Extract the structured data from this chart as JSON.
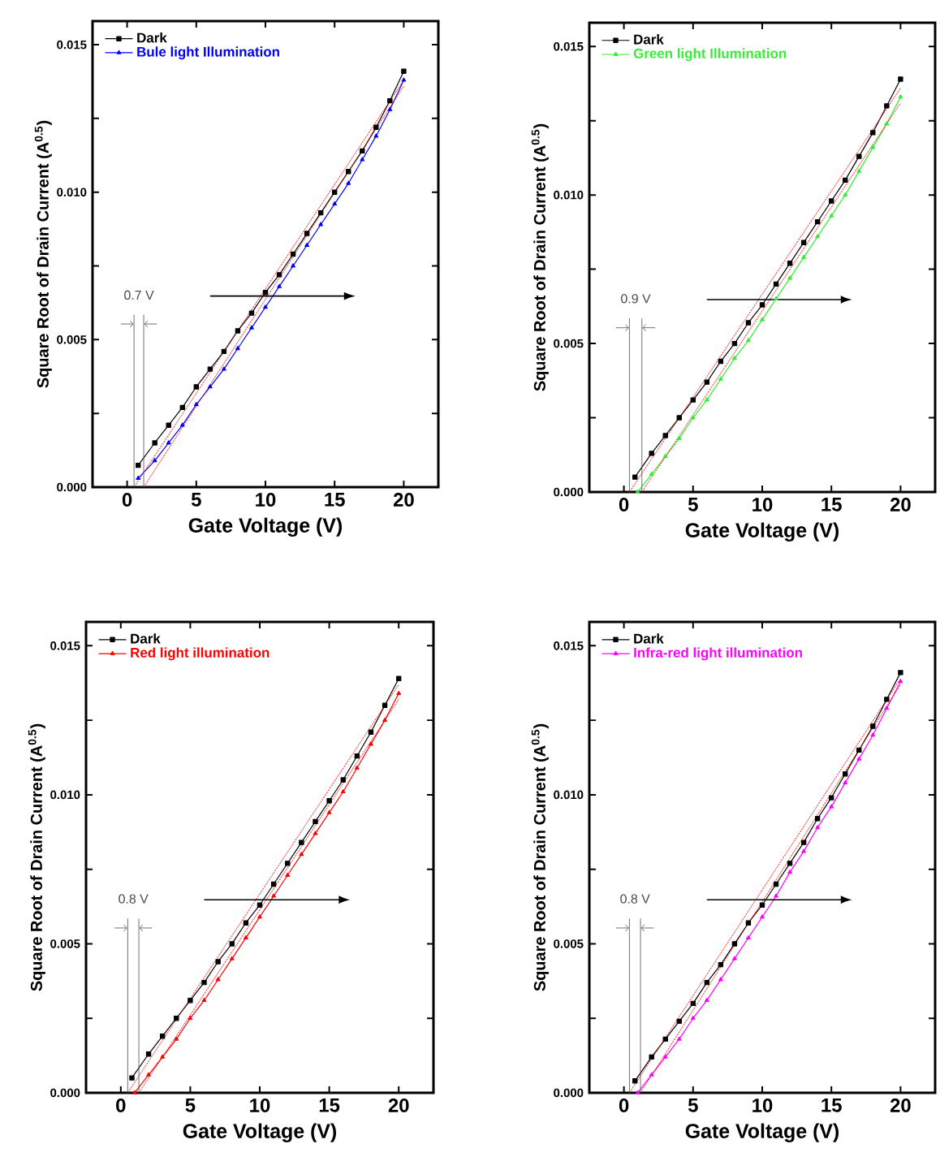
{
  "chart_data": [
    {
      "type": "line",
      "xlabel": "Gate Voltage (V)",
      "ylabel": "Square Root of Drain Current (A$^{0.5}$)",
      "xlim": [
        -2.5,
        22.5
      ],
      "ylim": [
        0,
        0.0158
      ],
      "xticks": [
        0,
        5,
        10,
        15,
        20
      ],
      "yticks": [
        {
          "value": 0,
          "label": "0.000"
        },
        {
          "value": 0.0025,
          "label": null
        },
        {
          "value": 0.005,
          "label": "0.005"
        },
        {
          "value": 0.0075,
          "label": null
        },
        {
          "value": 0.01,
          "label": "0.010"
        },
        {
          "value": 0.0125,
          "label": null
        },
        {
          "value": 0.015,
          "label": "0.015"
        }
      ],
      "legend": "top left",
      "series": [
        {
          "name": "Dark",
          "color": "#000000",
          "marker": "square",
          "x": [
            0.8,
            2,
            3,
            4,
            5,
            6,
            7,
            8,
            9,
            10,
            11,
            12,
            13,
            14,
            15,
            16,
            17,
            18,
            19,
            20
          ],
          "values": [
            0.00074,
            0.0015,
            0.0021,
            0.0027,
            0.0034,
            0.004,
            0.0046,
            0.0053,
            0.0059,
            0.0066,
            0.0072,
            0.0079,
            0.0086,
            0.0093,
            0.01,
            0.0107,
            0.0114,
            0.0122,
            0.0131,
            0.0141
          ]
        },
        {
          "name": "Bule light Illumination",
          "color": "#0000ff",
          "marker": "triangle",
          "x": [
            0.8,
            2,
            3,
            4,
            5,
            6,
            7,
            8,
            9,
            10,
            11,
            12,
            13,
            14,
            15,
            16,
            17,
            18,
            19,
            20
          ],
          "values": [
            0.0003,
            0.0009,
            0.0015,
            0.0021,
            0.0028,
            0.0034,
            0.004,
            0.0047,
            0.0054,
            0.0061,
            0.0068,
            0.0075,
            0.0082,
            0.0089,
            0.0096,
            0.0103,
            0.0111,
            0.0119,
            0.0128,
            0.0138
          ]
        },
        {
          "color": "#ff0000",
          "marker": "none",
          "line_style": "dotted",
          "x": [
            0.5,
            20
          ],
          "values": [
            0,
            0.0138
          ]
        },
        {
          "color": "#ff0000",
          "marker": "none",
          "line_style": "dotted",
          "x": [
            1.2,
            20
          ],
          "values": [
            0,
            0.0136
          ]
        }
      ],
      "ref_lines": [
        {
          "axis": "x",
          "value": 0.5
        },
        {
          "axis": "x",
          "value": 1.2
        }
      ],
      "annotations": [
        "0.7 V"
      ]
    },
    {
      "type": "line",
      "xlabel": "Gate Voltage (V)",
      "ylabel": "Square Root of Drain Current (A$^{0.5}$)",
      "xlim": [
        -2.5,
        22.5
      ],
      "ylim": [
        0,
        0.0158
      ],
      "xticks": [
        0,
        5,
        10,
        15,
        20
      ],
      "yticks": [
        {
          "value": 0,
          "label": "0.000"
        },
        {
          "value": 0.0025,
          "label": null
        },
        {
          "value": 0.005,
          "label": "0.005"
        },
        {
          "value": 0.0075,
          "label": null
        },
        {
          "value": 0.01,
          "label": "0.010"
        },
        {
          "value": 0.0125,
          "label": null
        },
        {
          "value": 0.015,
          "label": "0.015"
        }
      ],
      "legend": "top left",
      "series": [
        {
          "name": "Dark",
          "color": "#000000",
          "marker": "square",
          "x": [
            0.8,
            2,
            3,
            4,
            5,
            6,
            7,
            8,
            9,
            10,
            11,
            12,
            13,
            14,
            15,
            16,
            17,
            18,
            19,
            20
          ],
          "values": [
            0.0005,
            0.0013,
            0.0019,
            0.0025,
            0.0031,
            0.0037,
            0.0044,
            0.005,
            0.0057,
            0.0063,
            0.007,
            0.0077,
            0.0084,
            0.0091,
            0.0098,
            0.0105,
            0.0113,
            0.0121,
            0.013,
            0.0139
          ]
        },
        {
          "name": "Green light Illumination",
          "color": "#33ee33",
          "marker": "triangle",
          "x": [
            1.0,
            2,
            3,
            4,
            5,
            6,
            7,
            8,
            9,
            10,
            11,
            12,
            13,
            14,
            15,
            16,
            17,
            18,
            19,
            20
          ],
          "values": [
            0.0,
            0.0006,
            0.0012,
            0.0018,
            0.0025,
            0.0031,
            0.0038,
            0.0045,
            0.0051,
            0.0058,
            0.0065,
            0.0072,
            0.0079,
            0.0086,
            0.0093,
            0.01,
            0.0108,
            0.0116,
            0.0124,
            0.0133
          ]
        },
        {
          "color": "#ff0000",
          "marker": "none",
          "line_style": "dotted",
          "x": [
            0.4,
            20
          ],
          "values": [
            0,
            0.0136
          ]
        },
        {
          "color": "#ff0000",
          "marker": "none",
          "line_style": "dotted",
          "x": [
            1.3,
            20
          ],
          "values": [
            0,
            0.0131
          ]
        }
      ],
      "ref_lines": [
        {
          "axis": "x",
          "value": 0.4
        },
        {
          "axis": "x",
          "value": 1.3
        }
      ],
      "annotations": [
        "0.9 V"
      ]
    },
    {
      "type": "line",
      "xlabel": "Gate Voltage (V)",
      "ylabel": "Square Root of Drain Current (A$^{0.5}$)",
      "xlim": [
        -2.5,
        22.5
      ],
      "ylim": [
        0,
        0.0158
      ],
      "xticks": [
        0,
        5,
        10,
        15,
        20
      ],
      "yticks": [
        {
          "value": 0,
          "label": "0.000"
        },
        {
          "value": 0.0025,
          "label": null
        },
        {
          "value": 0.005,
          "label": "0.005"
        },
        {
          "value": 0.0075,
          "label": null
        },
        {
          "value": 0.01,
          "label": "0.010"
        },
        {
          "value": 0.0125,
          "label": null
        },
        {
          "value": 0.015,
          "label": "0.015"
        }
      ],
      "legend": "top left",
      "series": [
        {
          "name": "Dark",
          "color": "#000000",
          "marker": "square",
          "x": [
            0.8,
            2,
            3,
            4,
            5,
            6,
            7,
            8,
            9,
            10,
            11,
            12,
            13,
            14,
            15,
            16,
            17,
            18,
            19,
            20
          ],
          "values": [
            0.0005,
            0.0013,
            0.0019,
            0.0025,
            0.0031,
            0.0037,
            0.0044,
            0.005,
            0.0057,
            0.0063,
            0.007,
            0.0077,
            0.0084,
            0.0091,
            0.0098,
            0.0105,
            0.0113,
            0.0121,
            0.013,
            0.0139
          ]
        },
        {
          "name": "Red light illumination",
          "color": "#ff0000",
          "marker": "triangle",
          "x": [
            1.0,
            2,
            3,
            4,
            5,
            6,
            7,
            8,
            9,
            10,
            11,
            12,
            13,
            14,
            15,
            16,
            17,
            18,
            19,
            20
          ],
          "values": [
            0.0,
            0.0006,
            0.0012,
            0.0018,
            0.0025,
            0.0031,
            0.0038,
            0.0045,
            0.0052,
            0.0059,
            0.0066,
            0.0073,
            0.008,
            0.0087,
            0.0094,
            0.0101,
            0.0109,
            0.0117,
            0.0125,
            0.0134
          ]
        },
        {
          "color": "#ff0000",
          "marker": "none",
          "line_style": "dotted",
          "x": [
            0.5,
            20
          ],
          "values": [
            0,
            0.0137
          ]
        },
        {
          "color": "#ff0000",
          "marker": "none",
          "line_style": "dotted",
          "x": [
            1.3,
            20
          ],
          "values": [
            0,
            0.0132
          ]
        }
      ],
      "ref_lines": [
        {
          "axis": "x",
          "value": 0.5
        },
        {
          "axis": "x",
          "value": 1.3
        }
      ],
      "annotations": [
        "0.8 V"
      ]
    },
    {
      "type": "line",
      "xlabel": "Gate Voltage (V)",
      "ylabel": "Square Root of Drain Current (A$^{0.5}$)",
      "xlim": [
        -2.5,
        22.5
      ],
      "ylim": [
        0,
        0.0158
      ],
      "xticks": [
        0,
        5,
        10,
        15,
        20
      ],
      "yticks": [
        {
          "value": 0,
          "label": "0.000"
        },
        {
          "value": 0.0025,
          "label": null
        },
        {
          "value": 0.005,
          "label": "0.005"
        },
        {
          "value": 0.0075,
          "label": null
        },
        {
          "value": 0.01,
          "label": "0.010"
        },
        {
          "value": 0.0125,
          "label": null
        },
        {
          "value": 0.015,
          "label": "0.015"
        }
      ],
      "legend": "top left",
      "series": [
        {
          "name": "Dark",
          "color": "#000000",
          "marker": "square",
          "x": [
            0.8,
            2,
            3,
            4,
            5,
            6,
            7,
            8,
            9,
            10,
            11,
            12,
            13,
            14,
            15,
            16,
            17,
            18,
            19,
            20
          ],
          "values": [
            0.0004,
            0.0012,
            0.0018,
            0.0024,
            0.003,
            0.0037,
            0.0043,
            0.005,
            0.0057,
            0.0063,
            0.007,
            0.0077,
            0.0084,
            0.0092,
            0.0099,
            0.0107,
            0.0115,
            0.0123,
            0.0132,
            0.0141
          ]
        },
        {
          "name": "Infra-red light illumination",
          "color": "#ff00ff",
          "marker": "triangle",
          "x": [
            1.0,
            2,
            3,
            4,
            5,
            6,
            7,
            8,
            9,
            10,
            11,
            12,
            13,
            14,
            15,
            16,
            17,
            18,
            19,
            20
          ],
          "values": [
            0.0,
            0.0006,
            0.0012,
            0.0018,
            0.0025,
            0.0031,
            0.0038,
            0.0045,
            0.0052,
            0.0059,
            0.0066,
            0.0074,
            0.0081,
            0.0089,
            0.0096,
            0.0104,
            0.0112,
            0.012,
            0.0129,
            0.0138
          ]
        },
        {
          "color": "#ff0000",
          "marker": "none",
          "line_style": "dotted",
          "x": [
            0.4,
            20
          ],
          "values": [
            0,
            0.0139
          ]
        },
        {
          "color": "#ff0000",
          "marker": "none",
          "line_style": "dotted",
          "x": [
            1.2,
            20
          ],
          "values": [
            0,
            0.0137
          ]
        }
      ],
      "ref_lines": [
        {
          "axis": "x",
          "value": 0.4
        },
        {
          "axis": "x",
          "value": 1.2
        }
      ],
      "annotations": [
        "0.8 V"
      ]
    }
  ]
}
